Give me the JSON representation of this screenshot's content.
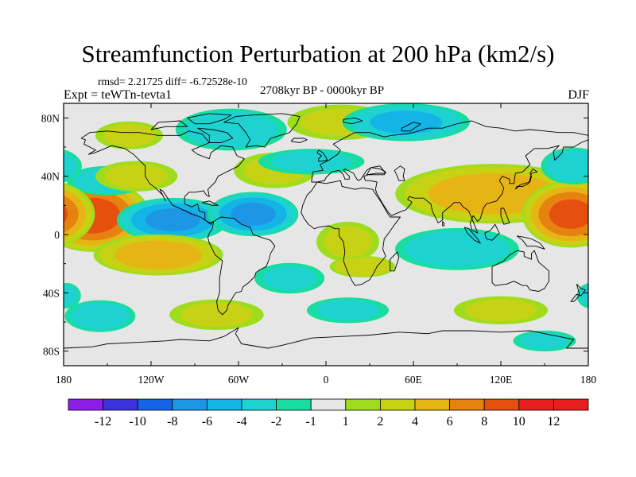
{
  "header": {
    "title": "Streamfunction Perturbation at 200 hPa (km2/s)",
    "stats": "rmsd= 2.21725 diff= -6.72528e-10",
    "experiment": "Expt = teWTn-tevta1",
    "period": "2708kyr BP - 0000kyr BP",
    "season": "DJF"
  },
  "map": {
    "projection": "cylindrical equidistant",
    "lon_range": [
      -180,
      180
    ],
    "lat_range": [
      -90,
      90
    ],
    "x_ticks": [
      "180",
      "120W",
      "60W",
      "0",
      "60E",
      "120E",
      "180"
    ],
    "y_ticks": [
      "80N",
      "40N",
      "0",
      "40S",
      "80S"
    ]
  },
  "colorbar": {
    "labels": [
      "-12",
      "-10",
      "-8",
      "-6",
      "-4",
      "-2",
      "-1",
      "1",
      "2",
      "4",
      "6",
      "8",
      "10",
      "12"
    ],
    "colors": [
      "#8c1ee6",
      "#3c32dc",
      "#1464e6",
      "#1e96e6",
      "#14b4e6",
      "#1ed2d2",
      "#19dca0",
      "#e6e6e6",
      "#a0dc1e",
      "#c8d214",
      "#e6b414",
      "#e6820f",
      "#e6500f",
      "#e61e1e"
    ]
  },
  "chart_data": {
    "type": "heatmap",
    "title": "Streamfunction Perturbation at 200 hPa (km2/s)",
    "units": "km2/s",
    "variable": "streamfunction perturbation",
    "level": "200 hPa",
    "season": "DJF",
    "rmsd": 2.21725,
    "diff": -6.72528e-10,
    "contour_levels": [
      -12,
      -10,
      -8,
      -6,
      -4,
      -2,
      -1,
      1,
      2,
      4,
      6,
      8,
      10,
      12
    ],
    "features": [
      {
        "name": "central North Pacific anomaly",
        "lon": -165,
        "lat": 15,
        "value": 9
      },
      {
        "name": "tropical Pacific (east) anomaly",
        "lon": -100,
        "lat": 12,
        "value": -6
      },
      {
        "name": "Caribbean / Atlantic anomaly",
        "lon": -55,
        "lat": 15,
        "value": -6
      },
      {
        "name": "South Pacific anomaly",
        "lon": -115,
        "lat": -15,
        "value": 5
      },
      {
        "name": "North Pacific (north) anomaly",
        "lon": -150,
        "lat": 37,
        "value": -3
      },
      {
        "name": "Arctic / Greenland anomaly",
        "lon": -60,
        "lat": 70,
        "value": -3
      },
      {
        "name": "Atlantic band",
        "lon": -35,
        "lat": 42,
        "value": 2
      },
      {
        "name": "Arctic Europe anomaly",
        "lon": 50,
        "lat": 77,
        "value": -4
      },
      {
        "name": "Eurasia band",
        "lon": 110,
        "lat": 28,
        "value": 5
      },
      {
        "name": "western Pacific anomaly",
        "lon": 170,
        "lat": 12,
        "value": 8
      },
      {
        "name": "North Pacific (NE) anomaly",
        "lon": 170,
        "lat": 45,
        "value": -3
      },
      {
        "name": "Indian Ocean anomaly",
        "lon": 85,
        "lat": -10,
        "value": -3
      },
      {
        "name": "southern Africa anomaly",
        "lon": 25,
        "lat": -20,
        "value": 3
      },
      {
        "name": "South Atlantic anomaly",
        "lon": -30,
        "lat": -30,
        "value": -2
      },
      {
        "name": "Southern Ocean anomaly",
        "lon": -155,
        "lat": -55,
        "value": -3
      },
      {
        "name": "Southern Ocean anomaly",
        "lon": -80,
        "lat": -55,
        "value": 2
      },
      {
        "name": "Southern Ocean anomaly",
        "lon": 10,
        "lat": -52,
        "value": -2
      },
      {
        "name": "Southern Ocean anomaly",
        "lon": 120,
        "lat": -50,
        "value": 2
      },
      {
        "name": "Southern Ocean anomaly",
        "lon": 150,
        "lat": -72,
        "value": -2
      }
    ]
  }
}
